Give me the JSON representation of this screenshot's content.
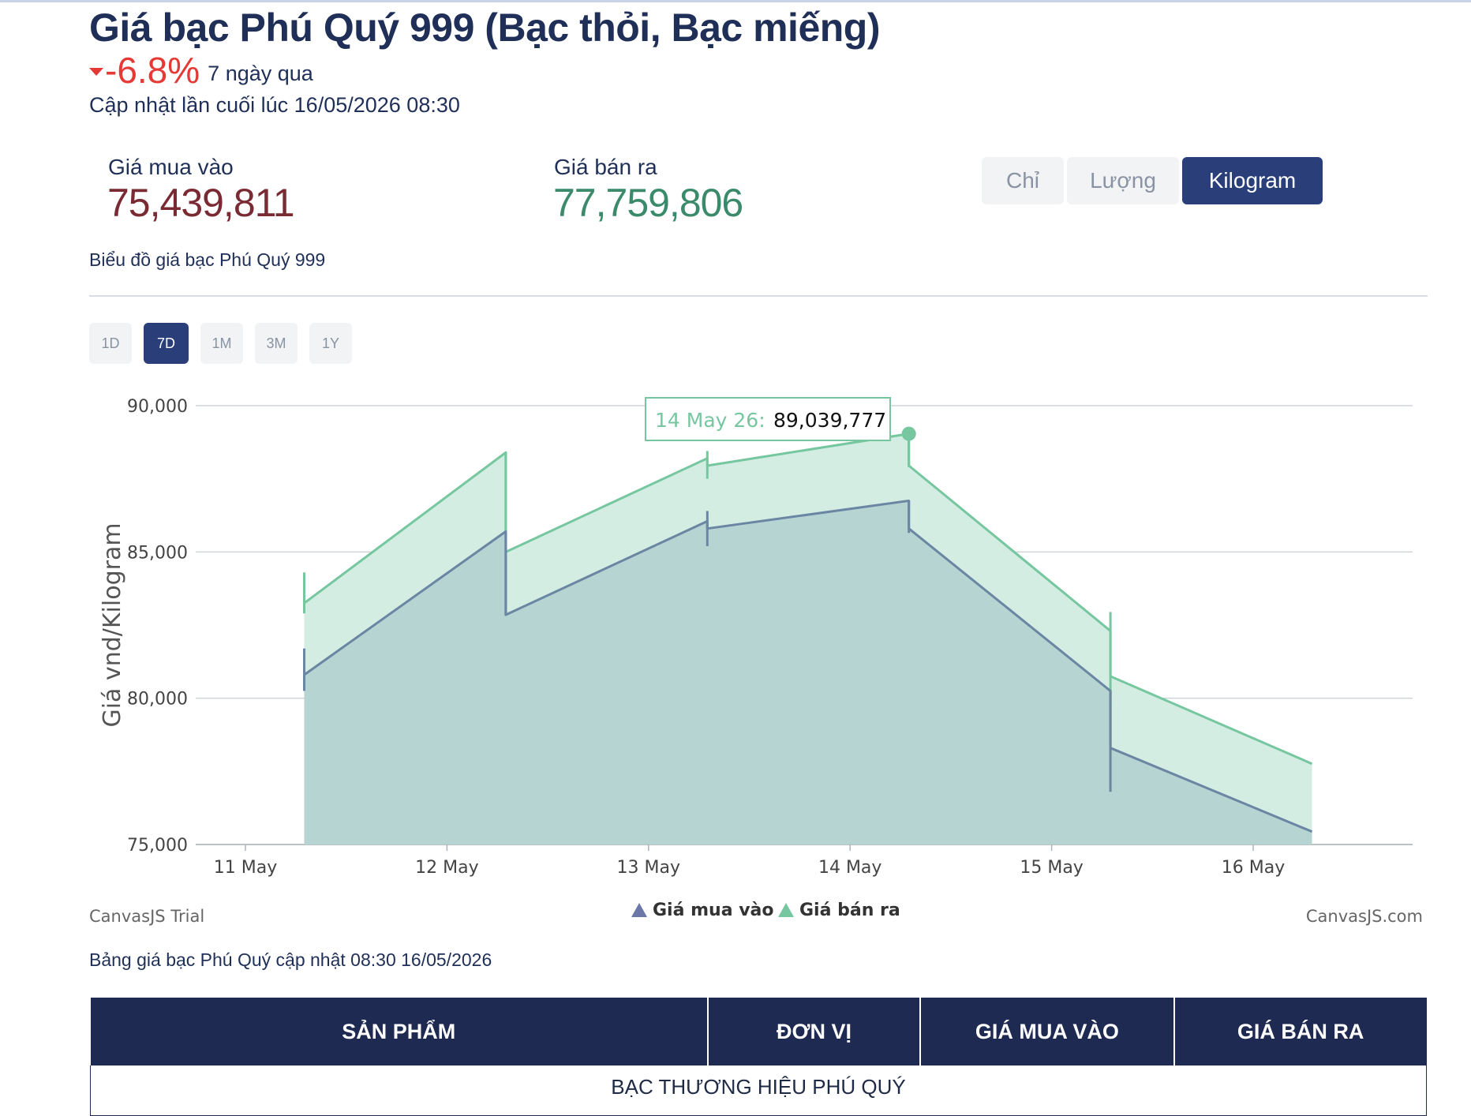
{
  "title": "Giá bạc Phú Quý 999 (Bạc thỏi, Bạc miếng)",
  "change": {
    "value": "-6.8%",
    "label": "7 ngày qua",
    "direction": "down"
  },
  "updated": "Cập nhật lần cuối lúc 16/05/2026 08:30",
  "prices": {
    "buy_label": "Giá mua vào",
    "buy_value": "75,439,811",
    "sell_label": "Giá bán ra",
    "sell_value": "77,759,806"
  },
  "unit_tabs": [
    {
      "label": "Chỉ",
      "active": false
    },
    {
      "label": "Lượng",
      "active": false
    },
    {
      "label": "Kilogram",
      "active": true
    }
  ],
  "chart_caption": "Biểu đồ giá bạc Phú Quý 999",
  "range_tabs": [
    {
      "label": "1D",
      "active": false
    },
    {
      "label": "7D",
      "active": true
    },
    {
      "label": "1M",
      "active": false
    },
    {
      "label": "3M",
      "active": false
    },
    {
      "label": "1Y",
      "active": false
    }
  ],
  "chart_data": {
    "type": "area",
    "ylabel": "Giá vnd/Kilogram",
    "ylim": [
      75000,
      90000
    ],
    "y_ticks": [
      "75,000",
      "80,000",
      "85,000",
      "90,000"
    ],
    "x_ticks": [
      "11 May",
      "12 May",
      "13 May",
      "14 May",
      "15 May",
      "16 May"
    ],
    "series": [
      {
        "name": "Giá mua vào",
        "color": "#6b86a3",
        "fill": "#b6d4d2",
        "points": [
          {
            "x": "2026-05-11 07:00",
            "open": 80800,
            "high": 81700,
            "low": 80250,
            "close": 80800
          },
          {
            "x": "2026-05-12 07:00",
            "open": 85700,
            "high": 85700,
            "low": 82850,
            "close": 82850
          },
          {
            "x": "2026-05-13 07:00",
            "open": 86050,
            "high": 86400,
            "low": 85200,
            "close": 85800
          },
          {
            "x": "2026-05-14 07:00",
            "open": 86750,
            "high": 86750,
            "low": 85650,
            "close": 85800
          },
          {
            "x": "2026-05-15 07:00",
            "open": 80250,
            "high": 80250,
            "low": 76800,
            "close": 78300
          },
          {
            "x": "2026-05-16 07:00",
            "open": 75439.811,
            "high": 75439.811,
            "low": 75439.811,
            "close": 75439.811
          }
        ]
      },
      {
        "name": "Giá bán ra",
        "color": "#76c7a0",
        "fill": "#d3ede2",
        "points": [
          {
            "x": "2026-05-11 07:00",
            "open": 83250,
            "high": 84300,
            "low": 82900,
            "close": 83250
          },
          {
            "x": "2026-05-12 07:00",
            "open": 88400,
            "high": 88400,
            "low": 85000,
            "close": 85000
          },
          {
            "x": "2026-05-13 07:00",
            "open": 88200,
            "high": 88450,
            "low": 87500,
            "close": 87950
          },
          {
            "x": "2026-05-14 07:00",
            "open": 89039.777,
            "high": 89039.777,
            "low": 87900,
            "close": 87950
          },
          {
            "x": "2026-05-15 07:00",
            "open": 82300,
            "high": 82950,
            "low": 79800,
            "close": 80750
          },
          {
            "x": "2026-05-16 07:00",
            "open": 77759.806,
            "high": 77759.806,
            "low": 77759.806,
            "close": 77759.806
          }
        ]
      }
    ],
    "tooltip": {
      "label": "14 May 26:",
      "value": "89,039,777"
    },
    "credit_left": "CanvasJS Trial",
    "credit_right": "CanvasJS.com",
    "legend": "bottom-center",
    "grid": true
  },
  "table": {
    "caption": "Bảng giá bạc Phú Quý cập nhật 08:30 16/05/2026",
    "headers": [
      "SẢN PHẨM",
      "ĐƠN VỊ",
      "GIÁ MUA VÀO",
      "GIÁ BÁN RA"
    ],
    "section": "BẠC THƯƠNG HIỆU PHÚ QUÝ"
  }
}
